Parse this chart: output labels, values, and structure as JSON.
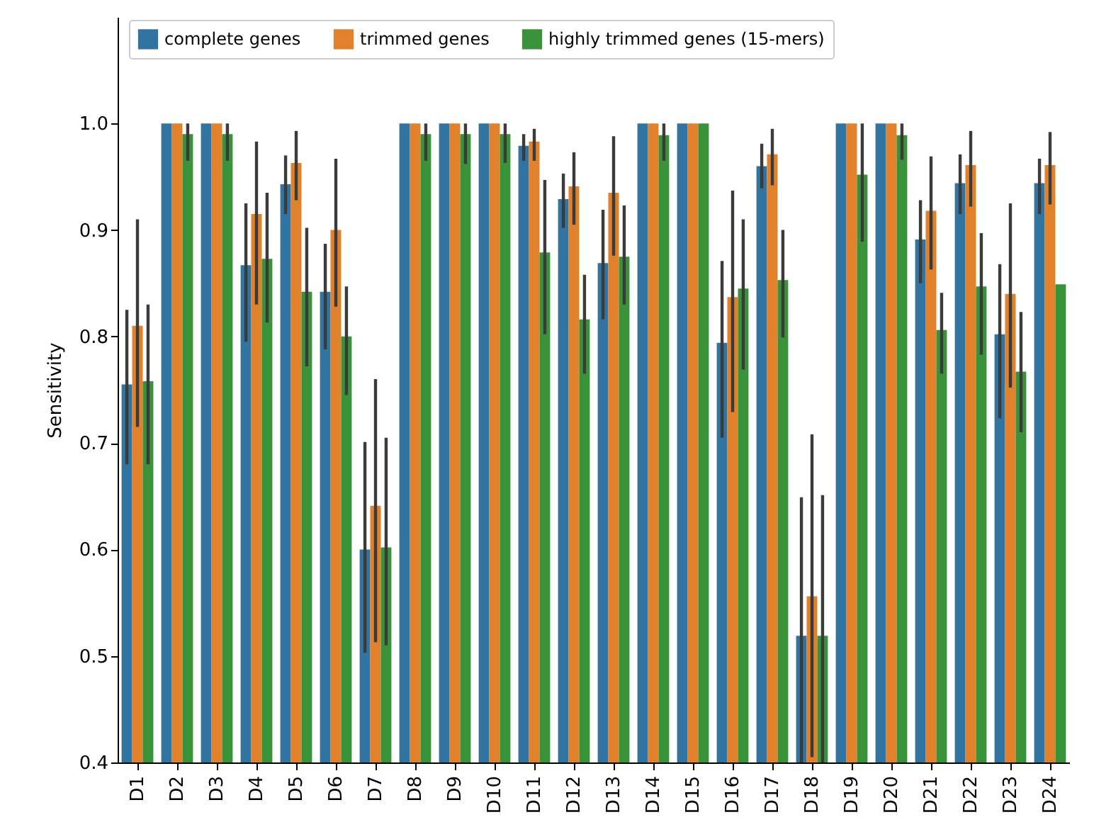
{
  "chart_data": {
    "type": "bar",
    "ylabel": "Sensitivity",
    "categories": [
      "D1",
      "D2",
      "D3",
      "D4",
      "D5",
      "D6",
      "D7",
      "D8",
      "D9",
      "D10",
      "D11",
      "D12",
      "D13",
      "D14",
      "D15",
      "D16",
      "D17",
      "D18",
      "D19",
      "D20",
      "D21",
      "D22",
      "D23",
      "D24"
    ],
    "series": [
      {
        "name": "complete genes",
        "color": "#3274a1",
        "values": [
          0.755,
          1.0,
          1.0,
          0.867,
          0.943,
          0.842,
          0.6,
          1.0,
          1.0,
          1.0,
          0.979,
          0.929,
          0.869,
          1.0,
          1.0,
          0.794,
          0.96,
          0.519,
          1.0,
          1.0,
          0.891,
          0.944,
          0.802,
          0.944
        ],
        "errors": [
          [
            0.68,
            0.825
          ],
          null,
          null,
          [
            0.795,
            0.925
          ],
          [
            0.915,
            0.97
          ],
          [
            0.788,
            0.887
          ],
          [
            0.503,
            0.701
          ],
          null,
          null,
          null,
          [
            0.965,
            0.99
          ],
          [
            0.902,
            0.953
          ],
          [
            0.816,
            0.919
          ],
          null,
          null,
          [
            0.705,
            0.871
          ],
          [
            0.939,
            0.981
          ],
          [
            0.4,
            0.649
          ],
          null,
          null,
          [
            0.85,
            0.928
          ],
          [
            0.915,
            0.971
          ],
          [
            0.723,
            0.868
          ],
          [
            0.915,
            0.967
          ]
        ]
      },
      {
        "name": "trimmed genes",
        "color": "#e1812c",
        "values": [
          0.81,
          1.0,
          1.0,
          0.915,
          0.963,
          0.9,
          0.641,
          1.0,
          1.0,
          1.0,
          0.983,
          0.941,
          0.935,
          1.0,
          1.0,
          0.837,
          0.971,
          0.556,
          1.0,
          1.0,
          0.918,
          0.961,
          0.84,
          0.961
        ],
        "errors": [
          [
            0.715,
            0.91
          ],
          null,
          null,
          [
            0.83,
            0.983
          ],
          [
            0.928,
            0.993
          ],
          [
            0.828,
            0.967
          ],
          [
            0.513,
            0.76
          ],
          null,
          null,
          null,
          [
            0.965,
            0.995
          ],
          [
            0.905,
            0.973
          ],
          [
            0.876,
            0.988
          ],
          null,
          null,
          [
            0.729,
            0.937
          ],
          [
            0.942,
            0.995
          ],
          [
            0.405,
            0.708
          ],
          null,
          null,
          [
            0.863,
            0.969
          ],
          [
            0.922,
            0.993
          ],
          [
            0.752,
            0.925
          ],
          [
            0.924,
            0.992
          ]
        ]
      },
      {
        "name": "highly trimmed genes (15-mers)",
        "color": "#3a923a",
        "values": [
          0.758,
          0.99,
          0.99,
          0.873,
          0.842,
          0.8,
          0.602,
          0.99,
          0.99,
          0.99,
          0.879,
          0.816,
          0.875,
          0.989,
          1.0,
          0.845,
          0.853,
          0.519,
          0.952,
          0.989,
          0.806,
          0.847,
          0.767,
          0.849
        ],
        "errors": [
          [
            0.68,
            0.83
          ],
          [
            0.965,
            1.0
          ],
          [
            0.965,
            1.0
          ],
          [
            0.813,
            0.935
          ],
          [
            0.772,
            0.902
          ],
          [
            0.745,
            0.847
          ],
          [
            0.51,
            0.705
          ],
          [
            0.965,
            1.0
          ],
          [
            0.962,
            1.0
          ],
          [
            0.963,
            1.0
          ],
          [
            0.802,
            0.947
          ],
          [
            0.765,
            0.858
          ],
          [
            0.83,
            0.923
          ],
          [
            0.965,
            1.0
          ],
          null,
          [
            0.769,
            0.91
          ],
          [
            0.799,
            0.9
          ],
          [
            0.4,
            0.651
          ],
          [
            0.889,
            1.0
          ],
          [
            0.966,
            1.0
          ],
          [
            0.765,
            0.841
          ],
          [
            0.783,
            0.897
          ],
          [
            0.71,
            0.823
          ],
          null
        ]
      }
    ],
    "ylim": [
      0.4,
      1.1
    ],
    "yticks": [
      0.4,
      0.5,
      0.6,
      0.7,
      0.8,
      0.9,
      {
        "value": 1.0,
        "label": "1.0"
      }
    ],
    "grid": false,
    "legend": "top"
  }
}
